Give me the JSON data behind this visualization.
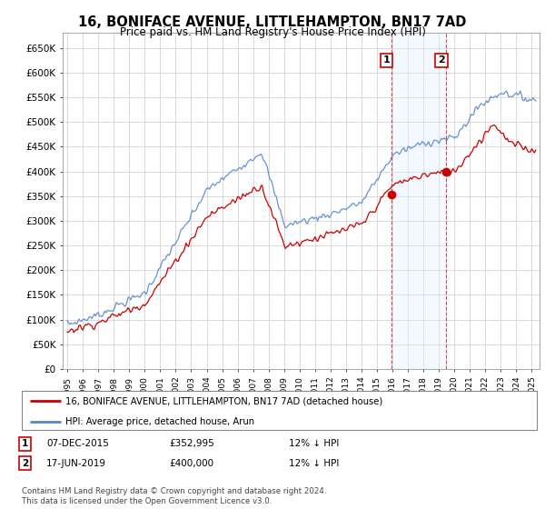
{
  "title": "16, BONIFACE AVENUE, LITTLEHAMPTON, BN17 7AD",
  "subtitle": "Price paid vs. HM Land Registry's House Price Index (HPI)",
  "ylim": [
    0,
    680000
  ],
  "yticks": [
    0,
    50000,
    100000,
    150000,
    200000,
    250000,
    300000,
    350000,
    400000,
    450000,
    500000,
    550000,
    600000,
    650000
  ],
  "xlim_start": 1994.7,
  "xlim_end": 2025.5,
  "legend_line1": "16, BONIFACE AVENUE, LITTLEHAMPTON, BN17 7AD (detached house)",
  "legend_line2": "HPI: Average price, detached house, Arun",
  "transaction1_label": "1",
  "transaction1_date": "07-DEC-2015",
  "transaction1_price": "£352,995",
  "transaction1_hpi": "12% ↓ HPI",
  "transaction1_year": 2015.92,
  "transaction1_value": 352995,
  "transaction2_label": "2",
  "transaction2_date": "17-JUN-2019",
  "transaction2_price": "£400,000",
  "transaction2_hpi": "12% ↓ HPI",
  "transaction2_year": 2019.46,
  "transaction2_value": 400000,
  "hpi_color": "#5588cc",
  "price_color": "#cc0000",
  "grid_color": "#cccccc",
  "background_color": "#ffffff",
  "plot_bg_color": "#ffffff",
  "span_color": "#ddeeff",
  "footer_text": "Contains HM Land Registry data © Crown copyright and database right 2024.\nThis data is licensed under the Open Government Licence v3.0."
}
